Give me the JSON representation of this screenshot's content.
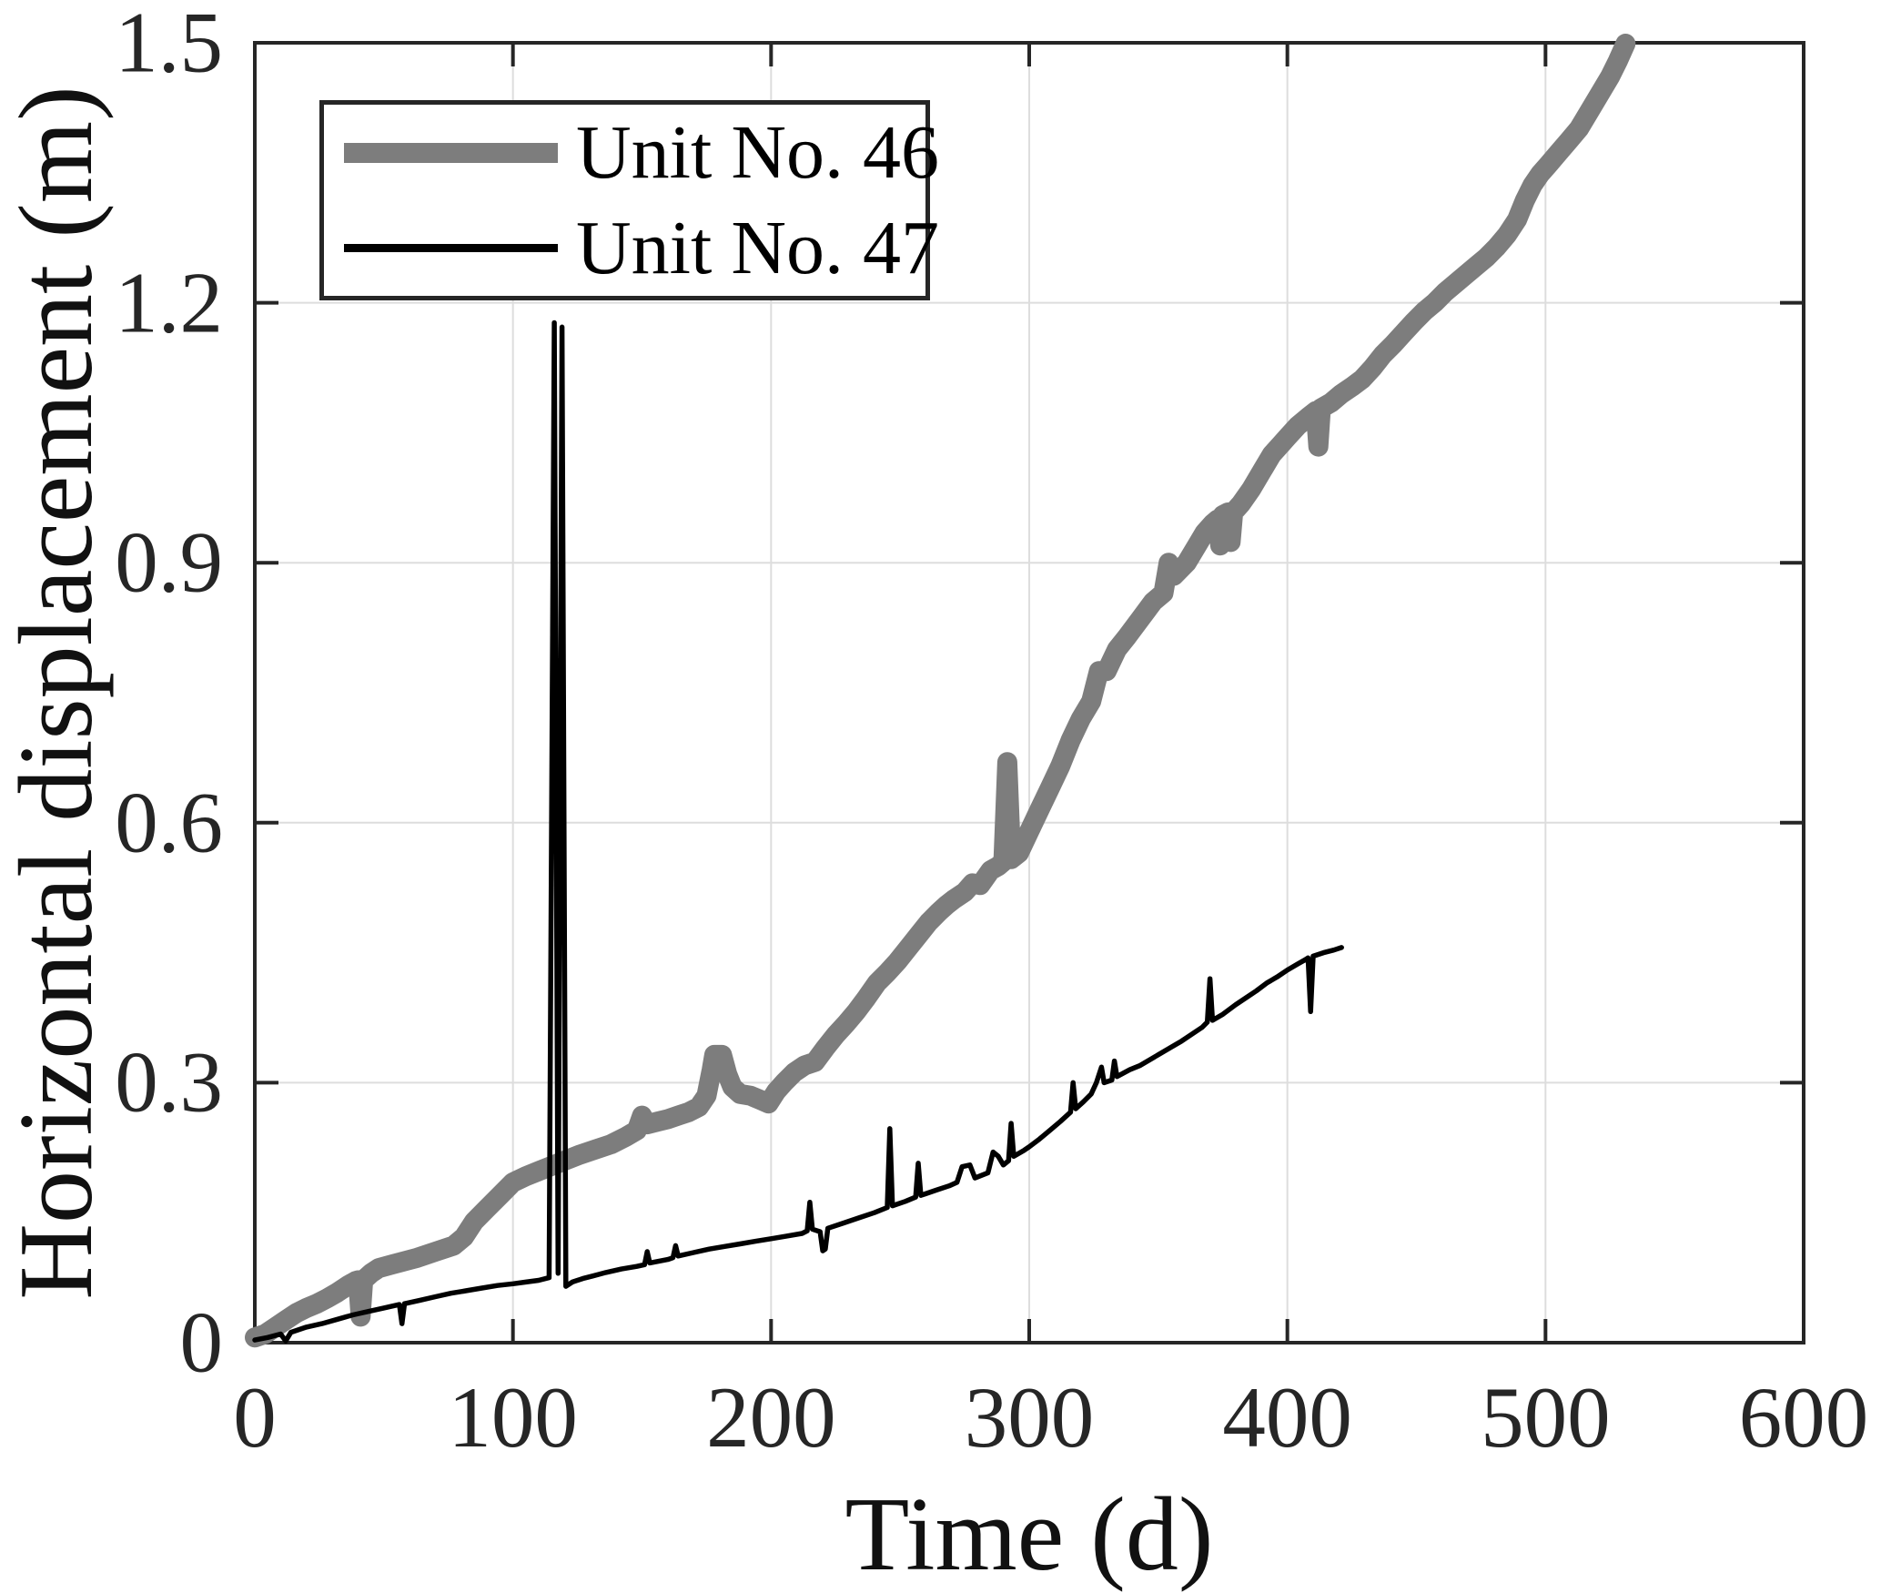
{
  "accent_colors": {
    "axis": "#262626",
    "grid": "#dddddd",
    "background": "#ffffff",
    "series_gray": "#7d7d7d",
    "series_black": "#000000"
  },
  "chart_data": {
    "type": "line",
    "title": "",
    "xlabel": "Time (d)",
    "ylabel": "Horizontal displacement (m)",
    "xlim": [
      0,
      600
    ],
    "ylim": [
      0,
      1.5
    ],
    "xticks": [
      0,
      100,
      200,
      300,
      400,
      500,
      600
    ],
    "xtick_labels": [
      "0",
      "100",
      "200",
      "300",
      "400",
      "500",
      "600"
    ],
    "yticks": [
      0,
      0.3,
      0.6,
      0.9,
      1.2,
      1.5
    ],
    "ytick_labels": [
      "0",
      "0.3",
      "0.6",
      "0.9",
      "1.2",
      "1.5"
    ],
    "grid": true,
    "legend_position": "top-left",
    "series": [
      {
        "name": "Unit No. 46",
        "color": "#7d7d7d",
        "line_width": 22,
        "points": [
          [
            0,
            0.006
          ],
          [
            4,
            0.01
          ],
          [
            8,
            0.018
          ],
          [
            12,
            0.026
          ],
          [
            16,
            0.034
          ],
          [
            20,
            0.04
          ],
          [
            24,
            0.045
          ],
          [
            28,
            0.051
          ],
          [
            32,
            0.058
          ],
          [
            36,
            0.066
          ],
          [
            39,
            0.071
          ],
          [
            40,
            0.072
          ],
          [
            41,
            0.03
          ],
          [
            42,
            0.072
          ],
          [
            45,
            0.08
          ],
          [
            48,
            0.086
          ],
          [
            53,
            0.09
          ],
          [
            58,
            0.094
          ],
          [
            63,
            0.098
          ],
          [
            70,
            0.105
          ],
          [
            77,
            0.112
          ],
          [
            81,
            0.122
          ],
          [
            85,
            0.14
          ],
          [
            90,
            0.155
          ],
          [
            95,
            0.17
          ],
          [
            100,
            0.185
          ],
          [
            105,
            0.192
          ],
          [
            110,
            0.198
          ],
          [
            115,
            0.204
          ],
          [
            120,
            0.21
          ],
          [
            126,
            0.217
          ],
          [
            132,
            0.223
          ],
          [
            138,
            0.229
          ],
          [
            144,
            0.238
          ],
          [
            148,
            0.245
          ],
          [
            150,
            0.262
          ],
          [
            152,
            0.252
          ],
          [
            156,
            0.255
          ],
          [
            160,
            0.258
          ],
          [
            164,
            0.262
          ],
          [
            168,
            0.266
          ],
          [
            172,
            0.272
          ],
          [
            175,
            0.285
          ],
          [
            177,
            0.315
          ],
          [
            178,
            0.332
          ],
          [
            181,
            0.332
          ],
          [
            183,
            0.31
          ],
          [
            185,
            0.295
          ],
          [
            188,
            0.287
          ],
          [
            192,
            0.285
          ],
          [
            196,
            0.28
          ],
          [
            199,
            0.276
          ],
          [
            202,
            0.29
          ],
          [
            205,
            0.3
          ],
          [
            209,
            0.312
          ],
          [
            213,
            0.32
          ],
          [
            217,
            0.324
          ],
          [
            221,
            0.34
          ],
          [
            225,
            0.355
          ],
          [
            229,
            0.368
          ],
          [
            233,
            0.382
          ],
          [
            237,
            0.398
          ],
          [
            241,
            0.415
          ],
          [
            245,
            0.427
          ],
          [
            249,
            0.44
          ],
          [
            253,
            0.455
          ],
          [
            257,
            0.47
          ],
          [
            261,
            0.485
          ],
          [
            265,
            0.497
          ],
          [
            268,
            0.505
          ],
          [
            271,
            0.512
          ],
          [
            275,
            0.52
          ],
          [
            278,
            0.53
          ],
          [
            281,
            0.528
          ],
          [
            285,
            0.545
          ],
          [
            288,
            0.55
          ],
          [
            290,
            0.555
          ],
          [
            291.5,
            0.67
          ],
          [
            293,
            0.558
          ],
          [
            296,
            0.565
          ],
          [
            300,
            0.59
          ],
          [
            304,
            0.615
          ],
          [
            308,
            0.64
          ],
          [
            312,
            0.665
          ],
          [
            316,
            0.695
          ],
          [
            320,
            0.72
          ],
          [
            324,
            0.74
          ],
          [
            327,
            0.775
          ],
          [
            330,
            0.775
          ],
          [
            334,
            0.8
          ],
          [
            338,
            0.815
          ],
          [
            343,
            0.835
          ],
          [
            348,
            0.855
          ],
          [
            352,
            0.865
          ],
          [
            354,
            0.9
          ],
          [
            356,
            0.885
          ],
          [
            361,
            0.9
          ],
          [
            365,
            0.92
          ],
          [
            368,
            0.935
          ],
          [
            371,
            0.945
          ],
          [
            373,
            0.95
          ],
          [
            374,
            0.92
          ],
          [
            375,
            0.955
          ],
          [
            377,
            0.958
          ],
          [
            378,
            0.924
          ],
          [
            379,
            0.958
          ],
          [
            382,
            0.968
          ],
          [
            386,
            0.985
          ],
          [
            390,
            1.005
          ],
          [
            394,
            1.025
          ],
          [
            397,
            1.035
          ],
          [
            400,
            1.045
          ],
          [
            404,
            1.058
          ],
          [
            408,
            1.068
          ],
          [
            411,
            1.075
          ],
          [
            412,
            1.034
          ],
          [
            413,
            1.078
          ],
          [
            417,
            1.085
          ],
          [
            421,
            1.095
          ],
          [
            425,
            1.103
          ],
          [
            429,
            1.112
          ],
          [
            433,
            1.125
          ],
          [
            437,
            1.14
          ],
          [
            441,
            1.152
          ],
          [
            445,
            1.165
          ],
          [
            449,
            1.178
          ],
          [
            453,
            1.19
          ],
          [
            457,
            1.2
          ],
          [
            461,
            1.212
          ],
          [
            465,
            1.222
          ],
          [
            469,
            1.232
          ],
          [
            473,
            1.242
          ],
          [
            477,
            1.252
          ],
          [
            481,
            1.264
          ],
          [
            485,
            1.278
          ],
          [
            489,
            1.296
          ],
          [
            492,
            1.318
          ],
          [
            495,
            1.336
          ],
          [
            498,
            1.349
          ],
          [
            501,
            1.359
          ],
          [
            505,
            1.373
          ],
          [
            509,
            1.387
          ],
          [
            513,
            1.401
          ],
          [
            517,
            1.421
          ],
          [
            521,
            1.441
          ],
          [
            525,
            1.461
          ],
          [
            528,
            1.479
          ],
          [
            531,
            1.499
          ]
        ]
      },
      {
        "name": "Unit No. 47",
        "color": "#000000",
        "line_width": 5.5,
        "points": [
          [
            0,
            0.003
          ],
          [
            5,
            0.006
          ],
          [
            10,
            0.01
          ],
          [
            12,
            0.002
          ],
          [
            14,
            0.012
          ],
          [
            20,
            0.018
          ],
          [
            26,
            0.022
          ],
          [
            32,
            0.027
          ],
          [
            38,
            0.032
          ],
          [
            44,
            0.036
          ],
          [
            50,
            0.04
          ],
          [
            56,
            0.044
          ],
          [
            57,
            0.022
          ],
          [
            58,
            0.045
          ],
          [
            64,
            0.049
          ],
          [
            70,
            0.053
          ],
          [
            76,
            0.057
          ],
          [
            82,
            0.06
          ],
          [
            88,
            0.063
          ],
          [
            94,
            0.066
          ],
          [
            100,
            0.068
          ],
          [
            105,
            0.07
          ],
          [
            110,
            0.072
          ],
          [
            114,
            0.075
          ],
          [
            116,
            1.177
          ],
          [
            117.5,
            0.08
          ],
          [
            119,
            1.172
          ],
          [
            120.5,
            0.065
          ],
          [
            123,
            0.07
          ],
          [
            127,
            0.074
          ],
          [
            131,
            0.077
          ],
          [
            136,
            0.081
          ],
          [
            142,
            0.085
          ],
          [
            148,
            0.088
          ],
          [
            151,
            0.09
          ],
          [
            152,
            0.105
          ],
          [
            153,
            0.092
          ],
          [
            160,
            0.096
          ],
          [
            162,
            0.098
          ],
          [
            163,
            0.112
          ],
          [
            164,
            0.1
          ],
          [
            170,
            0.104
          ],
          [
            176,
            0.108
          ],
          [
            182,
            0.111
          ],
          [
            188,
            0.114
          ],
          [
            194,
            0.117
          ],
          [
            200,
            0.12
          ],
          [
            206,
            0.123
          ],
          [
            212,
            0.126
          ],
          [
            214,
            0.129
          ],
          [
            215,
            0.162
          ],
          [
            216,
            0.131
          ],
          [
            219,
            0.128
          ],
          [
            220,
            0.106
          ],
          [
            221,
            0.108
          ],
          [
            222,
            0.132
          ],
          [
            228,
            0.138
          ],
          [
            234,
            0.144
          ],
          [
            240,
            0.15
          ],
          [
            245,
            0.156
          ],
          [
            246,
            0.247
          ],
          [
            247,
            0.158
          ],
          [
            252,
            0.163
          ],
          [
            256,
            0.168
          ],
          [
            257,
            0.207
          ],
          [
            258,
            0.17
          ],
          [
            264,
            0.176
          ],
          [
            269,
            0.181
          ],
          [
            272,
            0.185
          ],
          [
            274,
            0.203
          ],
          [
            277,
            0.205
          ],
          [
            279,
            0.19
          ],
          [
            284,
            0.196
          ],
          [
            286,
            0.22
          ],
          [
            288,
            0.215
          ],
          [
            290,
            0.205
          ],
          [
            292,
            0.21
          ],
          [
            293,
            0.253
          ],
          [
            294,
            0.215
          ],
          [
            298,
            0.222
          ],
          [
            300,
            0.226
          ],
          [
            304,
            0.235
          ],
          [
            308,
            0.245
          ],
          [
            312,
            0.255
          ],
          [
            316,
            0.266
          ],
          [
            317,
            0.3
          ],
          [
            318,
            0.27
          ],
          [
            321,
            0.278
          ],
          [
            324,
            0.287
          ],
          [
            326,
            0.3
          ],
          [
            328,
            0.318
          ],
          [
            329,
            0.3
          ],
          [
            332,
            0.303
          ],
          [
            333,
            0.325
          ],
          [
            334,
            0.307
          ],
          [
            339,
            0.315
          ],
          [
            343,
            0.32
          ],
          [
            347,
            0.327
          ],
          [
            351,
            0.334
          ],
          [
            355,
            0.341
          ],
          [
            359,
            0.348
          ],
          [
            363,
            0.356
          ],
          [
            367,
            0.364
          ],
          [
            369,
            0.37
          ],
          [
            370,
            0.42
          ],
          [
            371,
            0.372
          ],
          [
            375,
            0.379
          ],
          [
            380,
            0.39
          ],
          [
            384,
            0.398
          ],
          [
            388,
            0.406
          ],
          [
            392,
            0.415
          ],
          [
            396,
            0.422
          ],
          [
            400,
            0.43
          ],
          [
            404,
            0.437
          ],
          [
            407,
            0.442
          ],
          [
            408,
            0.444
          ],
          [
            409,
            0.382
          ],
          [
            410,
            0.446
          ],
          [
            414,
            0.45
          ],
          [
            418,
            0.453
          ],
          [
            421,
            0.456
          ]
        ]
      }
    ]
  },
  "legend": {
    "items": [
      {
        "label": "Unit No. 46",
        "swatch_color": "#7d7d7d",
        "swatch_height": 22
      },
      {
        "label": "Unit No. 47",
        "swatch_color": "#000000",
        "swatch_height": 9
      }
    ]
  }
}
